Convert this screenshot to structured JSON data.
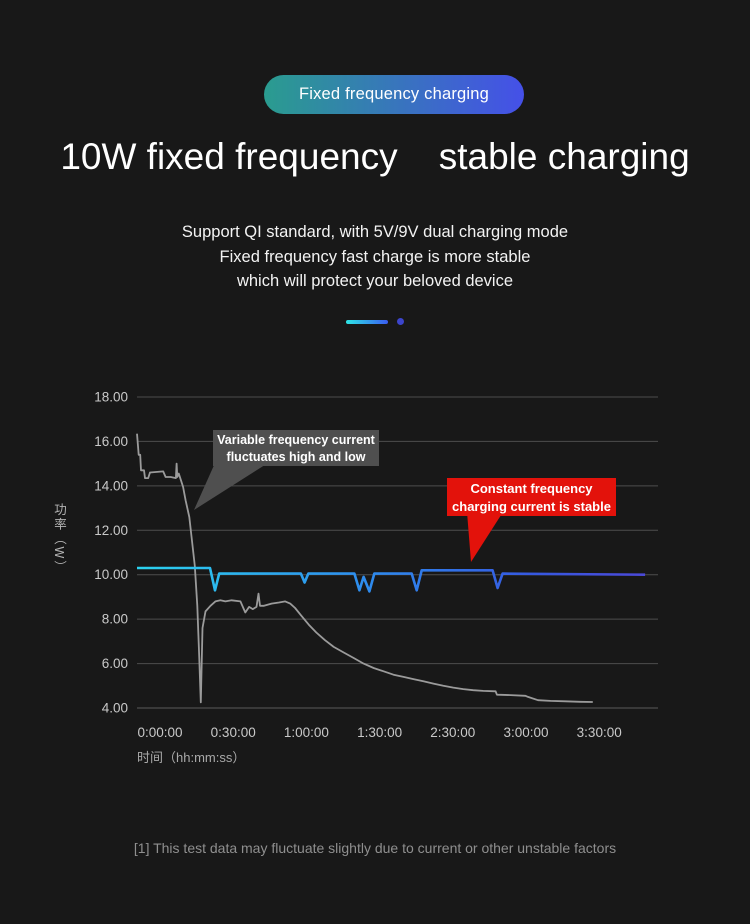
{
  "page": {
    "badge_label": "Fixed frequency charging",
    "title": "10W fixed frequency    stable charging",
    "description_lines": [
      "Support QI standard, with 5V/9V dual charging mode",
      "Fixed frequency fast charge is more stable",
      "which will protect your beloved device"
    ],
    "footnote": "[1] This test data may fluctuate slightly due to current or other unstable factors"
  },
  "colors": {
    "background": "#181818",
    "badge_gradient_start": "#2a9c8f",
    "badge_gradient_end": "#4550e8",
    "divider_gradient_start": "#2ee6e6",
    "divider_gradient_end": "#3a5cf0",
    "divider_dot": "#3c45cc",
    "grid": "#4d4d4d",
    "axis_line": "#5a5a5a",
    "tick_text": "#c9c9c9",
    "axis_title_text": "#a9a9a9",
    "series_variable": "#9b9b9b",
    "series_constant_start": "#2bd2ef",
    "series_constant_mid": "#2e8cee",
    "series_constant_end": "#4b49d8",
    "callout_gray_bg": "#4f4f4f",
    "callout_red_bg": "#e3120b"
  },
  "chart_data": {
    "type": "line",
    "title": "",
    "xlabel": "时间（hh:mm:ss）",
    "ylabel": "功率（W）",
    "grid": true,
    "legend_position": "none",
    "ylim": [
      4,
      18
    ],
    "y_ticks": [
      18,
      16,
      14,
      12,
      10,
      8,
      6,
      4
    ],
    "y_tick_labels": [
      "18.00",
      "16.00",
      "14.00",
      "12.00",
      "10.00",
      "8.00",
      "6.00",
      "4.00"
    ],
    "x_tick_labels": [
      "0:00:00",
      "0:30:00",
      "1:00:00",
      "1:30:00",
      "2:30:00",
      "3:00:00",
      "3:30:00"
    ],
    "x_axis_minutes": [
      0,
      210
    ],
    "series": [
      {
        "name": "Variable frequency current",
        "style": "gray",
        "points": [
          [
            0,
            16.35
          ],
          [
            0.7,
            15.4
          ],
          [
            1.3,
            15.4
          ],
          [
            1.6,
            14.7
          ],
          [
            2.8,
            14.7
          ],
          [
            3.2,
            14.35
          ],
          [
            4.5,
            14.35
          ],
          [
            5.2,
            14.6
          ],
          [
            10.5,
            14.65
          ],
          [
            11.5,
            14.4
          ],
          [
            13.5,
            14.4
          ],
          [
            15.6,
            14.35
          ],
          [
            15.9,
            15.0
          ],
          [
            16.2,
            14.4
          ],
          [
            16.8,
            14.55
          ],
          [
            17.5,
            14.3
          ],
          [
            18.5,
            13.95
          ],
          [
            19.5,
            13.35
          ],
          [
            21,
            12.6
          ],
          [
            22,
            11.6
          ],
          [
            23.2,
            10.4
          ],
          [
            24.2,
            8.6
          ],
          [
            25,
            6.2
          ],
          [
            25.6,
            4.25
          ],
          [
            26.3,
            7.6
          ],
          [
            27.5,
            8.35
          ],
          [
            29.5,
            8.6
          ],
          [
            31.5,
            8.8
          ],
          [
            33.5,
            8.85
          ],
          [
            35.5,
            8.8
          ],
          [
            38,
            8.85
          ],
          [
            41.5,
            8.8
          ],
          [
            43.5,
            8.3
          ],
          [
            45,
            8.55
          ],
          [
            46.5,
            8.45
          ],
          [
            48,
            8.55
          ],
          [
            48.8,
            9.15
          ],
          [
            49.4,
            8.6
          ],
          [
            51,
            8.6
          ],
          [
            54,
            8.7
          ],
          [
            57,
            8.75
          ],
          [
            59.5,
            8.8
          ],
          [
            61.5,
            8.7
          ],
          [
            63.5,
            8.5
          ],
          [
            66,
            8.15
          ],
          [
            69,
            7.75
          ],
          [
            72,
            7.4
          ],
          [
            75.5,
            7.05
          ],
          [
            79,
            6.75
          ],
          [
            83,
            6.5
          ],
          [
            87,
            6.25
          ],
          [
            91,
            6.0
          ],
          [
            95,
            5.8
          ],
          [
            99,
            5.65
          ],
          [
            103,
            5.5
          ],
          [
            107,
            5.4
          ],
          [
            111,
            5.3
          ],
          [
            115,
            5.2
          ],
          [
            119,
            5.1
          ],
          [
            123,
            5.0
          ],
          [
            127,
            4.92
          ],
          [
            131,
            4.85
          ],
          [
            135,
            4.8
          ],
          [
            139,
            4.77
          ],
          [
            144,
            4.75
          ],
          [
            144.5,
            4.6
          ],
          [
            150,
            4.58
          ],
          [
            156,
            4.55
          ],
          [
            157,
            4.5
          ],
          [
            161,
            4.35
          ],
          [
            166,
            4.32
          ],
          [
            172,
            4.3
          ],
          [
            178,
            4.28
          ],
          [
            183,
            4.27
          ]
        ]
      },
      {
        "name": "Constant frequency charging current",
        "style": "gradient",
        "points": [
          [
            0,
            10.3
          ],
          [
            29.3,
            10.3
          ],
          [
            31.3,
            9.3
          ],
          [
            33,
            10.05
          ],
          [
            65.8,
            10.05
          ],
          [
            67.3,
            9.65
          ],
          [
            68.8,
            10.05
          ],
          [
            87.3,
            10.05
          ],
          [
            89.3,
            9.3
          ],
          [
            91,
            9.9
          ],
          [
            93.3,
            9.25
          ],
          [
            95.3,
            10.05
          ],
          [
            110.3,
            10.05
          ],
          [
            112.3,
            9.3
          ],
          [
            114.3,
            10.2
          ],
          [
            142.8,
            10.2
          ],
          [
            144.8,
            9.4
          ],
          [
            146.8,
            10.05
          ],
          [
            204,
            10.0
          ]
        ]
      }
    ],
    "annotations": [
      {
        "lines": [
          "Variable frequency current",
          "fluctuates high and low"
        ],
        "color": "gray"
      },
      {
        "lines": [
          "Constant frequency",
          "charging current is stable"
        ],
        "color": "red"
      }
    ]
  }
}
